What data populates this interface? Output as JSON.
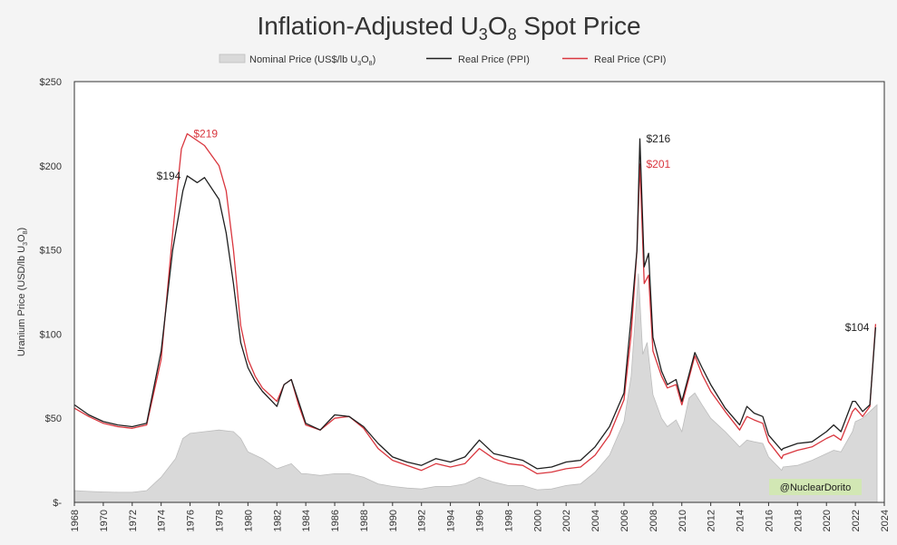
{
  "chart_data": {
    "type": "area+line",
    "title_parts": {
      "pre": "Inflation-Adjusted U",
      "sub1": "3",
      "mid": "O",
      "sub2": "8",
      "post": " Spot Price"
    },
    "ylabel_parts": {
      "pre": "Uranium Price (USD/lb U",
      "sub1": "3",
      "mid": "O",
      "sub2": "8",
      "post": ")"
    },
    "ylim": [
      0,
      250
    ],
    "xlim": [
      1968,
      2024
    ],
    "y_ticks": [
      {
        "value": 0,
        "label": "$-"
      },
      {
        "value": 50,
        "label": "$50"
      },
      {
        "value": 100,
        "label": "$100"
      },
      {
        "value": 150,
        "label": "$150"
      },
      {
        "value": 200,
        "label": "$200"
      },
      {
        "value": 250,
        "label": "$250"
      }
    ],
    "x_ticks": [
      "1968",
      "1970",
      "1972",
      "1974",
      "1976",
      "1978",
      "1980",
      "1982",
      "1984",
      "1986",
      "1988",
      "1990",
      "1992",
      "1994",
      "1996",
      "1998",
      "2000",
      "2002",
      "2004",
      "2006",
      "2008",
      "2010",
      "2012",
      "2014",
      "2016",
      "2018",
      "2020",
      "2022",
      "2024"
    ],
    "legend": [
      {
        "key": "nominal",
        "pre": "Nominal Price (US$/lb U",
        "sub1": "3",
        "mid": "O",
        "sub2": "8",
        "post": ")"
      },
      {
        "key": "ppi",
        "label": "Real Price (PPI)"
      },
      {
        "key": "cpi",
        "label": "Real Price (CPI)"
      }
    ],
    "colors": {
      "nominal_fill": "#d9d9d9",
      "nominal_stroke": "#bdbdbd",
      "ppi": "#1f1f1f",
      "cpi": "#d9363e",
      "text": "#333333",
      "watermark_bg": "#d2e7b4"
    },
    "series": [
      {
        "name": "Nominal Price (US$/lb U3O8)",
        "key": "nominal",
        "points": [
          [
            1968,
            7
          ],
          [
            1969,
            6.5
          ],
          [
            1970,
            6.2
          ],
          [
            1971,
            6
          ],
          [
            1972,
            6
          ],
          [
            1973,
            7
          ],
          [
            1974,
            15
          ],
          [
            1975,
            26
          ],
          [
            1975.5,
            38
          ],
          [
            1976,
            41
          ],
          [
            1977,
            42
          ],
          [
            1978,
            43
          ],
          [
            1979,
            42
          ],
          [
            1979.5,
            38
          ],
          [
            1980,
            30
          ],
          [
            1981,
            26
          ],
          [
            1982,
            20
          ],
          [
            1983,
            23
          ],
          [
            1983.7,
            17
          ],
          [
            1984,
            17
          ],
          [
            1985,
            16
          ],
          [
            1986,
            17
          ],
          [
            1987,
            17
          ],
          [
            1988,
            15
          ],
          [
            1989,
            11
          ],
          [
            1990,
            9.5
          ],
          [
            1991,
            8.5
          ],
          [
            1992,
            8
          ],
          [
            1993,
            9.5
          ],
          [
            1994,
            9.5
          ],
          [
            1995,
            11
          ],
          [
            1996,
            15
          ],
          [
            1997,
            12
          ],
          [
            1998,
            10
          ],
          [
            1999,
            10
          ],
          [
            2000,
            7.5
          ],
          [
            2001,
            8
          ],
          [
            2002,
            10
          ],
          [
            2003,
            11
          ],
          [
            2004,
            18
          ],
          [
            2005,
            28
          ],
          [
            2006,
            48
          ],
          [
            2006.5,
            75
          ],
          [
            2007,
            136
          ],
          [
            2007.3,
            88
          ],
          [
            2007.6,
            95
          ],
          [
            2008,
            64
          ],
          [
            2008.6,
            50
          ],
          [
            2009,
            45
          ],
          [
            2009.6,
            49
          ],
          [
            2010,
            42
          ],
          [
            2010.5,
            62
          ],
          [
            2010.9,
            65
          ],
          [
            2011.4,
            58
          ],
          [
            2012,
            50
          ],
          [
            2013,
            42
          ],
          [
            2014,
            33
          ],
          [
            2014.5,
            37
          ],
          [
            2015,
            36
          ],
          [
            2015.6,
            35
          ],
          [
            2016,
            27
          ],
          [
            2016.9,
            19
          ],
          [
            2017,
            21
          ],
          [
            2018,
            22
          ],
          [
            2019,
            25
          ],
          [
            2020,
            29
          ],
          [
            2020.5,
            31
          ],
          [
            2021,
            30
          ],
          [
            2021.8,
            42
          ],
          [
            2022,
            48
          ],
          [
            2022.5,
            50
          ],
          [
            2023,
            54
          ],
          [
            2023.5,
            58
          ]
        ]
      },
      {
        "name": "Real Price (PPI)",
        "key": "ppi",
        "points": [
          [
            1968,
            58
          ],
          [
            1969,
            52
          ],
          [
            1970,
            48
          ],
          [
            1971,
            46
          ],
          [
            1972,
            45
          ],
          [
            1973,
            47
          ],
          [
            1974,
            90
          ],
          [
            1974.8,
            150
          ],
          [
            1975.5,
            185
          ],
          [
            1975.8,
            194
          ],
          [
            1976.5,
            190
          ],
          [
            1977,
            193
          ],
          [
            1978,
            180
          ],
          [
            1978.5,
            160
          ],
          [
            1979,
            130
          ],
          [
            1979.5,
            95
          ],
          [
            1980,
            80
          ],
          [
            1980.5,
            72
          ],
          [
            1981,
            66
          ],
          [
            1982,
            57
          ],
          [
            1982.5,
            70
          ],
          [
            1983,
            73
          ],
          [
            1983.5,
            60
          ],
          [
            1984,
            47
          ],
          [
            1985,
            43
          ],
          [
            1986,
            52
          ],
          [
            1987,
            51
          ],
          [
            1988,
            45
          ],
          [
            1989,
            35
          ],
          [
            1990,
            27
          ],
          [
            1991,
            24
          ],
          [
            1992,
            22
          ],
          [
            1993,
            26
          ],
          [
            1994,
            24
          ],
          [
            1995,
            27
          ],
          [
            1996,
            37
          ],
          [
            1997,
            29
          ],
          [
            1998,
            27
          ],
          [
            1999,
            25
          ],
          [
            2000,
            20
          ],
          [
            2001,
            21
          ],
          [
            2002,
            24
          ],
          [
            2003,
            25
          ],
          [
            2004,
            33
          ],
          [
            2005,
            45
          ],
          [
            2006,
            65
          ],
          [
            2006.5,
            110
          ],
          [
            2006.9,
            150
          ],
          [
            2007.1,
            216
          ],
          [
            2007.4,
            140
          ],
          [
            2007.7,
            148
          ],
          [
            2008,
            98
          ],
          [
            2008.6,
            78
          ],
          [
            2009,
            70
          ],
          [
            2009.6,
            73
          ],
          [
            2010,
            60
          ],
          [
            2010.5,
            76
          ],
          [
            2010.9,
            89
          ],
          [
            2011.4,
            80
          ],
          [
            2012,
            70
          ],
          [
            2013,
            56
          ],
          [
            2014,
            46
          ],
          [
            2014.5,
            57
          ],
          [
            2015,
            53
          ],
          [
            2015.6,
            51
          ],
          [
            2016,
            40
          ],
          [
            2016.9,
            31
          ],
          [
            2017,
            32
          ],
          [
            2018,
            35
          ],
          [
            2019,
            36
          ],
          [
            2020,
            42
          ],
          [
            2020.5,
            46
          ],
          [
            2021,
            42
          ],
          [
            2021.8,
            60
          ],
          [
            2022,
            60
          ],
          [
            2022.5,
            54
          ],
          [
            2023,
            58
          ],
          [
            2023.4,
            104
          ]
        ]
      },
      {
        "name": "Real Price (CPI)",
        "key": "cpi",
        "points": [
          [
            1968,
            56
          ],
          [
            1969,
            51
          ],
          [
            1970,
            47
          ],
          [
            1971,
            45
          ],
          [
            1972,
            44
          ],
          [
            1973,
            46
          ],
          [
            1974,
            85
          ],
          [
            1974.8,
            160
          ],
          [
            1975.4,
            210
          ],
          [
            1975.8,
            219
          ],
          [
            1976.5,
            215
          ],
          [
            1977,
            212
          ],
          [
            1978,
            200
          ],
          [
            1978.5,
            185
          ],
          [
            1979,
            150
          ],
          [
            1979.5,
            105
          ],
          [
            1980,
            85
          ],
          [
            1980.5,
            75
          ],
          [
            1981,
            68
          ],
          [
            1982,
            60
          ],
          [
            1982.5,
            70
          ],
          [
            1983,
            73
          ],
          [
            1983.5,
            58
          ],
          [
            1984,
            46
          ],
          [
            1985,
            43
          ],
          [
            1986,
            50
          ],
          [
            1987,
            51
          ],
          [
            1988,
            44
          ],
          [
            1989,
            32
          ],
          [
            1990,
            25
          ],
          [
            1991,
            22
          ],
          [
            1992,
            19
          ],
          [
            1993,
            23
          ],
          [
            1994,
            21
          ],
          [
            1995,
            23
          ],
          [
            1996,
            32
          ],
          [
            1997,
            26
          ],
          [
            1998,
            23
          ],
          [
            1999,
            22
          ],
          [
            2000,
            17
          ],
          [
            2001,
            18
          ],
          [
            2002,
            20
          ],
          [
            2003,
            21
          ],
          [
            2004,
            28
          ],
          [
            2005,
            40
          ],
          [
            2006,
            61
          ],
          [
            2006.5,
            100
          ],
          [
            2006.9,
            150
          ],
          [
            2007.1,
            201
          ],
          [
            2007.4,
            130
          ],
          [
            2007.7,
            135
          ],
          [
            2008,
            90
          ],
          [
            2008.6,
            75
          ],
          [
            2009,
            68
          ],
          [
            2009.6,
            70
          ],
          [
            2010,
            58
          ],
          [
            2010.5,
            74
          ],
          [
            2010.9,
            87
          ],
          [
            2011.4,
            76
          ],
          [
            2012,
            66
          ],
          [
            2013,
            54
          ],
          [
            2014,
            43
          ],
          [
            2014.5,
            51
          ],
          [
            2015,
            49
          ],
          [
            2015.6,
            47
          ],
          [
            2016,
            36
          ],
          [
            2016.9,
            26
          ],
          [
            2017,
            28
          ],
          [
            2018,
            31
          ],
          [
            2019,
            33
          ],
          [
            2020,
            38
          ],
          [
            2020.5,
            40
          ],
          [
            2021,
            37
          ],
          [
            2021.8,
            54
          ],
          [
            2022,
            56
          ],
          [
            2022.5,
            51
          ],
          [
            2023,
            57
          ],
          [
            2023.4,
            106
          ]
        ]
      }
    ],
    "annotations": [
      {
        "text": "$219",
        "x": 1975.8,
        "y": 219,
        "series": "cpi",
        "side": "right"
      },
      {
        "text": "$194",
        "x": 1975.8,
        "y": 194,
        "series": "ppi",
        "side": "left"
      },
      {
        "text": "$216",
        "x": 2007.1,
        "y": 216,
        "series": "ppi",
        "side": "right"
      },
      {
        "text": "$201",
        "x": 2007.1,
        "y": 201,
        "series": "cpi",
        "side": "right"
      },
      {
        "text": "$104",
        "x": 2023.4,
        "y": 104,
        "series": "ppi",
        "side": "left"
      }
    ],
    "watermark": "@NuclearDorito"
  }
}
